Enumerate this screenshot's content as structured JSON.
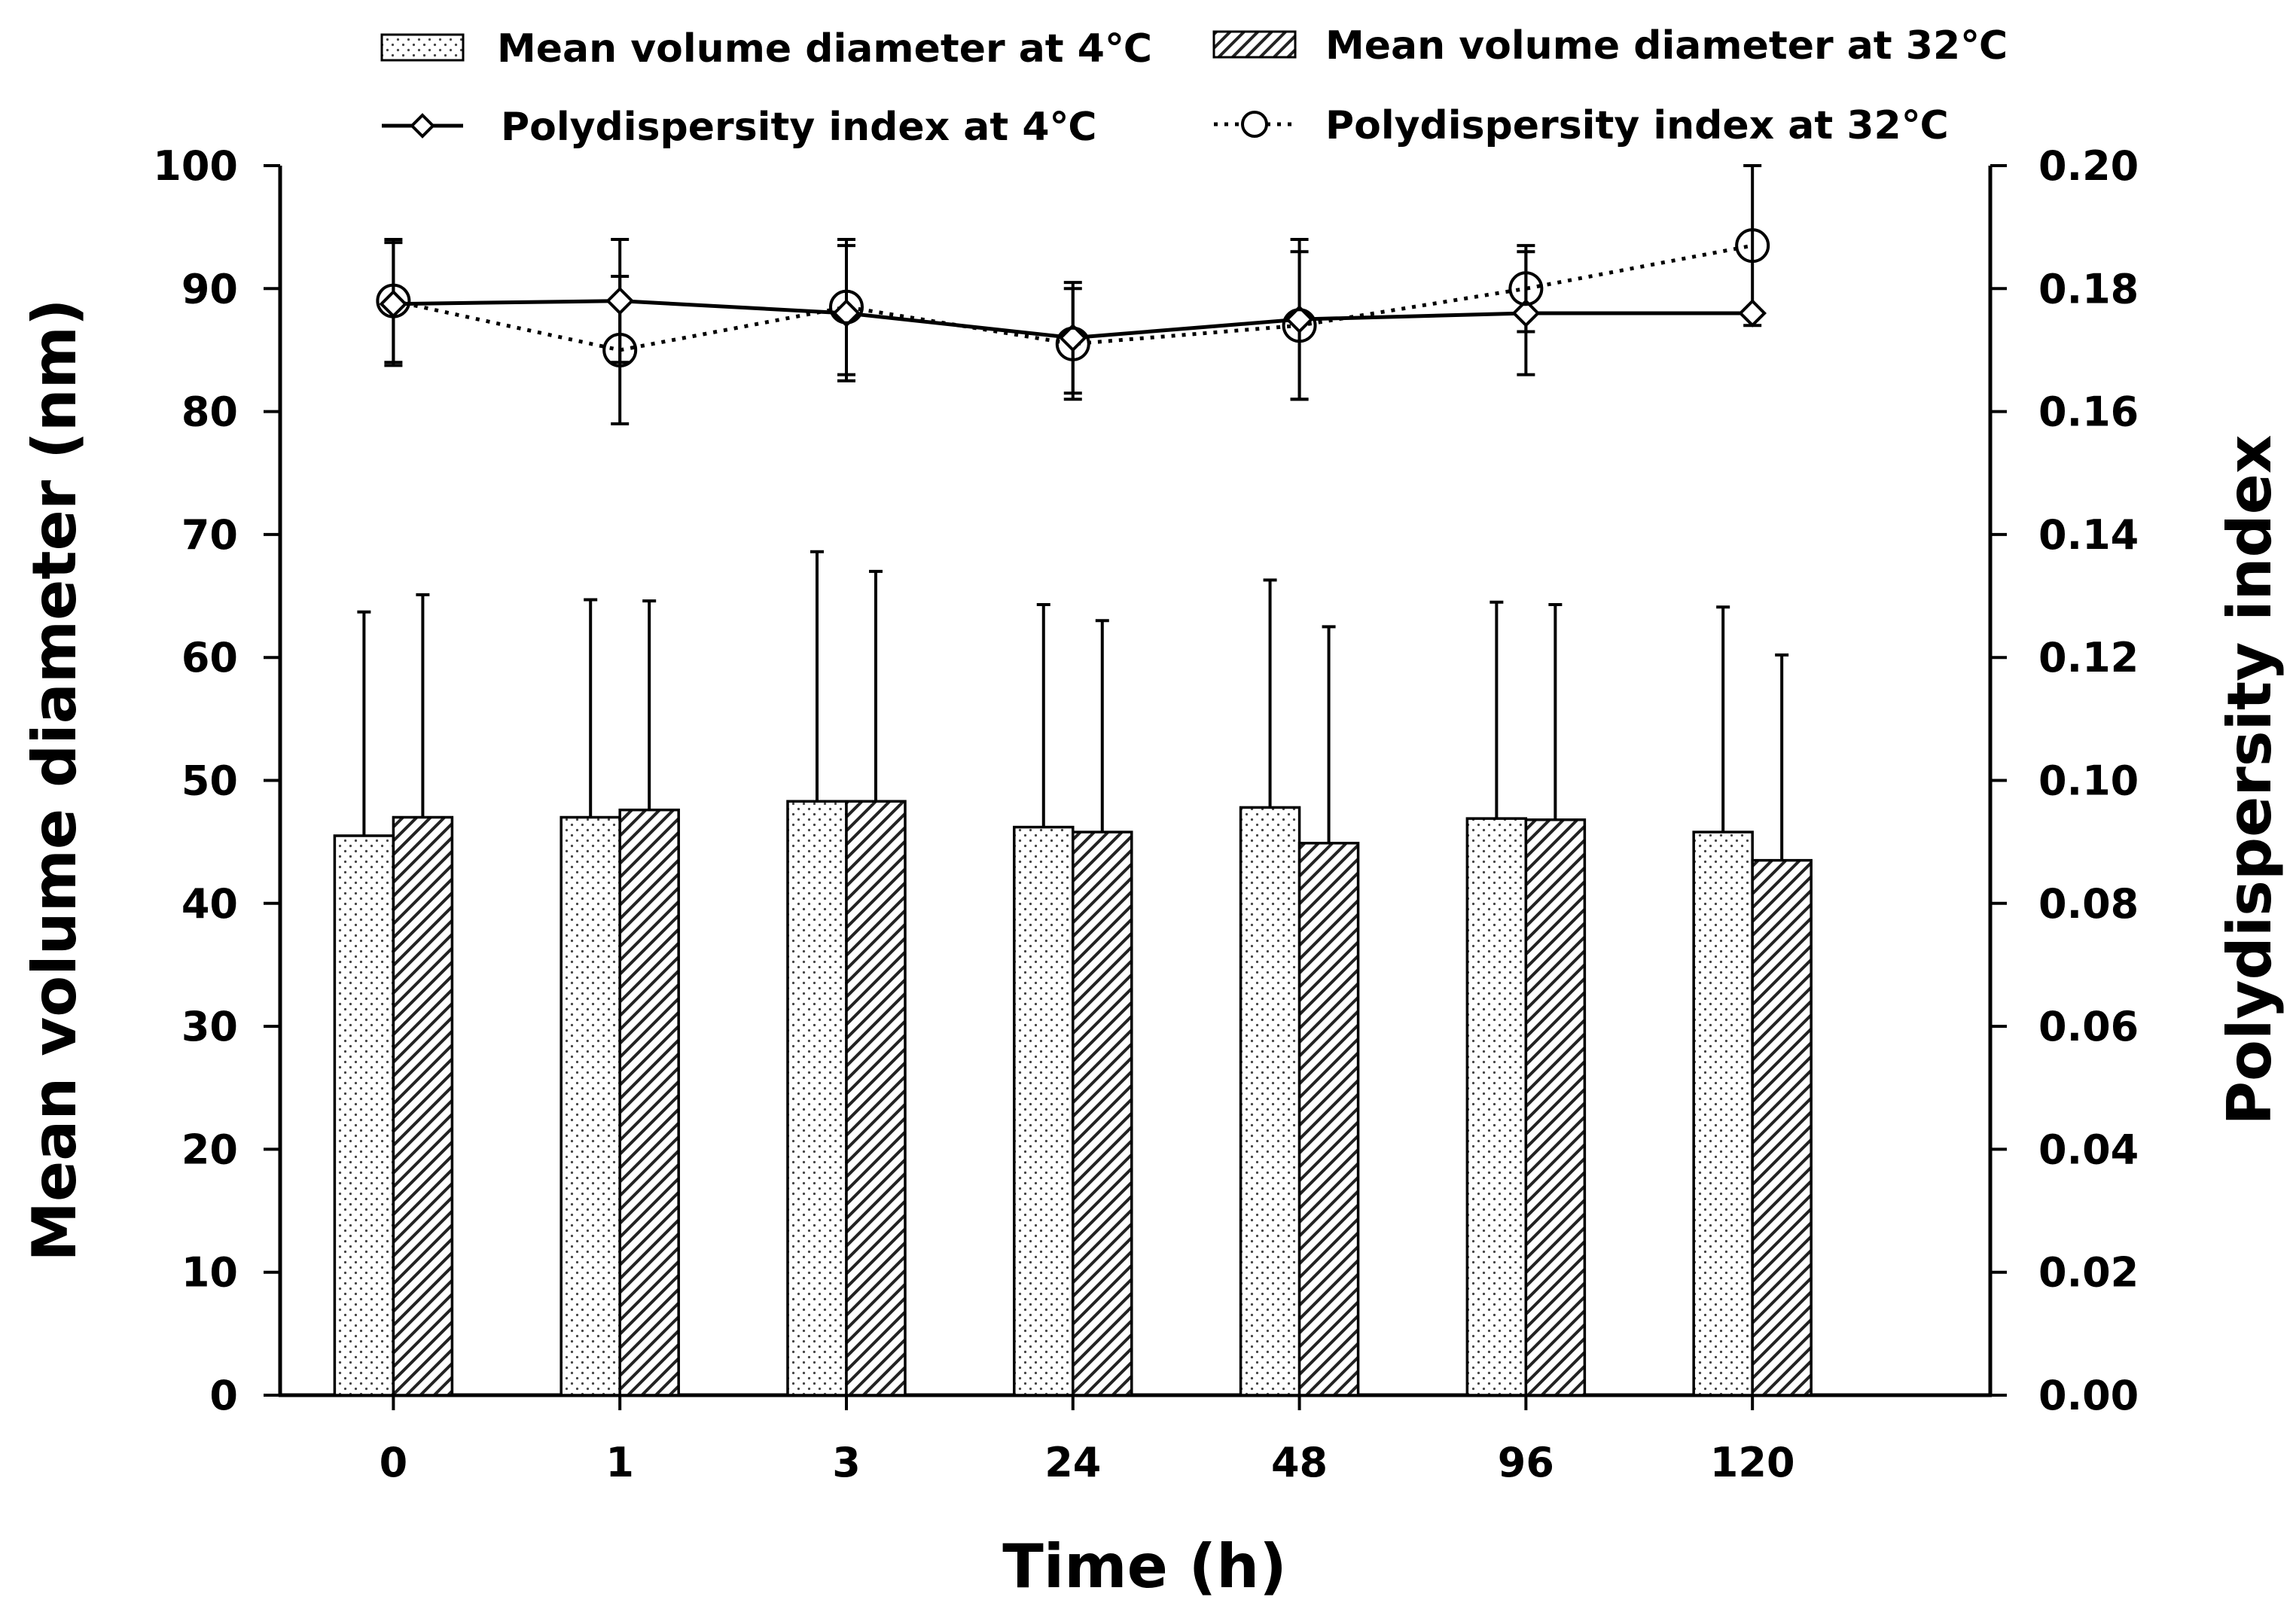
{
  "chart_data": {
    "type": "bar",
    "title": "",
    "xlabel": "Time (h)",
    "ylabel": "Mean volume diameter (nm)",
    "y2label": "Polydispersity index",
    "ylim": [
      0,
      100
    ],
    "y2lim": [
      0,
      0.2
    ],
    "yticks": [
      "0",
      "10",
      "20",
      "30",
      "40",
      "50",
      "60",
      "70",
      "80",
      "90",
      "100"
    ],
    "y2ticks": [
      "0.00",
      "0.02",
      "0.04",
      "0.06",
      "0.08",
      "0.10",
      "0.12",
      "0.14",
      "0.16",
      "0.18",
      "0.20"
    ],
    "categories": [
      "0",
      "1",
      "3",
      "24",
      "48",
      "96",
      "120"
    ],
    "bar_series": [
      {
        "name": "Mean volume diameter at 4℃",
        "pattern": "dots",
        "values": [
          45.5,
          47.0,
          48.3,
          46.2,
          47.8,
          46.9,
          45.8
        ],
        "errors": [
          18.2,
          17.7,
          20.3,
          18.1,
          18.5,
          17.6,
          18.3
        ]
      },
      {
        "name": "Mean volume diameter at 32℃",
        "pattern": "hatch",
        "values": [
          47.0,
          47.6,
          48.3,
          45.8,
          44.9,
          46.8,
          43.5
        ],
        "errors": [
          18.1,
          17.0,
          18.7,
          17.2,
          17.6,
          17.5,
          16.7
        ]
      }
    ],
    "line_series": [
      {
        "name": "Polydispersity index at 4℃",
        "style": "solid",
        "marker": "diamond",
        "axis": "right",
        "values": [
          0.1775,
          0.178,
          0.176,
          0.172,
          0.175,
          0.176,
          0.176
        ],
        "errors": [
          0.01,
          0.01,
          0.011,
          0.009,
          0.013,
          0.01,
          0.0
        ]
      },
      {
        "name": "Polydispersity index at 32℃",
        "style": "dotted",
        "marker": "circle",
        "axis": "right",
        "values": [
          0.178,
          0.17,
          0.177,
          0.171,
          0.174,
          0.18,
          0.187
        ],
        "errors": [
          0.01,
          0.012,
          0.011,
          0.009,
          0.012,
          0.007,
          0.013
        ]
      }
    ],
    "legend": {
      "position": "top",
      "entries": [
        "Mean volume diameter at 4℃",
        "Mean volume diameter at 32℃",
        "Polydispersity index at 4℃",
        "Polydispersity index at 32℃"
      ]
    }
  }
}
